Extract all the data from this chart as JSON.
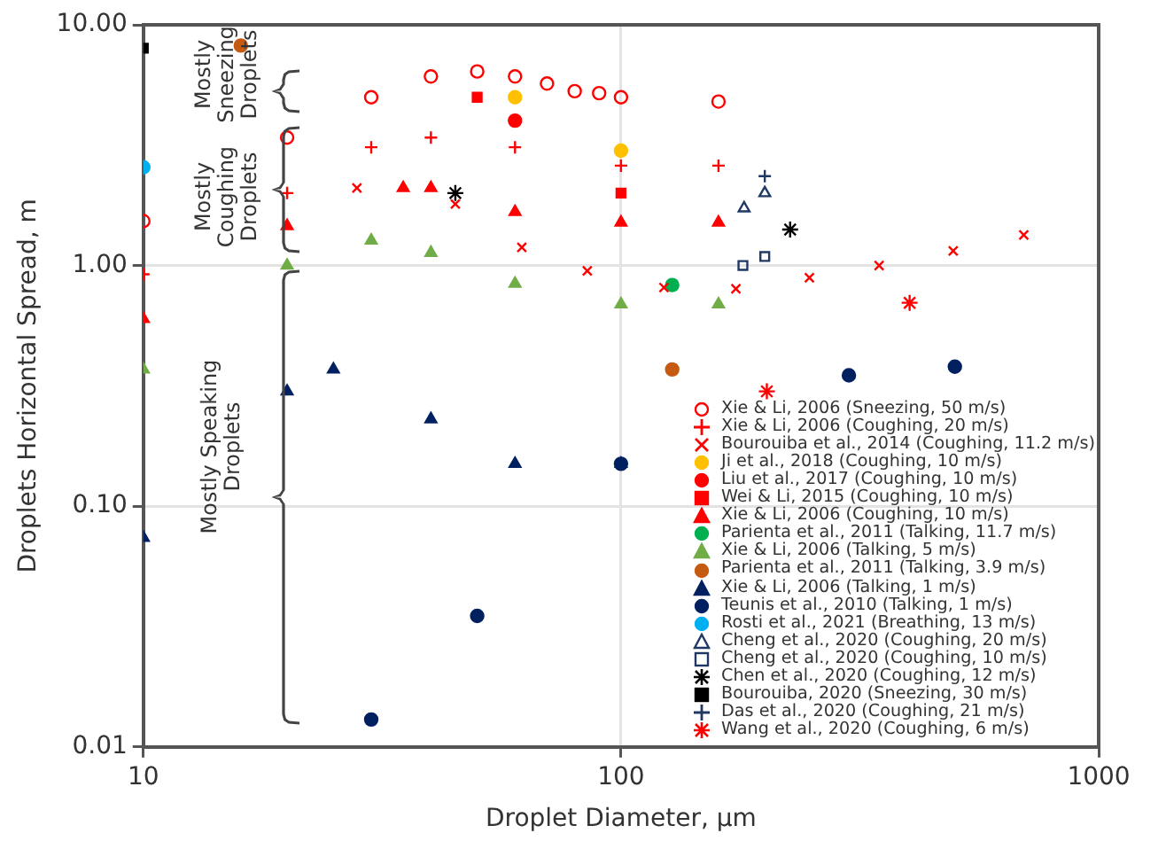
{
  "chart_data": {
    "type": "scatter",
    "xlabel": "Droplet Diameter, μm",
    "ylabel": "Droplets Horizontal Spread, m",
    "log": "xy",
    "grid": true,
    "legend": "bottom right",
    "xlim": [
      10,
      1000
    ],
    "xticks": [
      10,
      100,
      1000
    ],
    "ylim": [
      0.01,
      10
    ],
    "yticks": [
      {
        "value": 0.01,
        "label": "0.01"
      },
      {
        "value": 0.1,
        "label": "0.10"
      },
      {
        "value": 1,
        "label": "1.00"
      },
      {
        "value": 10,
        "label": "10.00"
      }
    ],
    "annotations": [
      "Mostly Sneezing Droplets",
      "Mostly Coughing Droplets",
      "Mostly Speaking Droplets"
    ],
    "series": [
      {
        "name": "Xie & Li, 2006 (Sneezing, 50 m/s)",
        "color": "#ff0000",
        "marker": "circle-open",
        "x": [
          10,
          20,
          30,
          40,
          50,
          60,
          70,
          80,
          90,
          100,
          160
        ],
        "values": [
          1.53,
          3.4,
          5.0,
          6.1,
          6.4,
          6.1,
          5.7,
          5.3,
          5.2,
          5.0,
          4.8
        ]
      },
      {
        "name": "Xie & Li, 2006 (Coughing, 20 m/s)",
        "color": "#ff0000",
        "marker": "plus",
        "x": [
          10,
          20,
          30,
          40,
          60,
          100,
          160
        ],
        "values": [
          0.92,
          2.0,
          3.1,
          3.4,
          3.1,
          2.6,
          2.6
        ]
      },
      {
        "name": "Bourouiba et al., 2014 (Coughing, 11.2 m/s)",
        "color": "#ff0000",
        "marker": "x",
        "x": [
          28,
          45,
          62,
          85,
          123,
          174,
          248,
          347,
          496,
          697
        ],
        "values": [
          2.1,
          1.8,
          1.19,
          0.95,
          0.81,
          0.8,
          0.89,
          1.0,
          1.15,
          1.34
        ]
      },
      {
        "name": "Ji et al., 2018 (Coughing, 10 m/s)",
        "color": "#ffc000",
        "marker": "circle",
        "x": [
          60,
          100
        ],
        "values": [
          5.0,
          3.0
        ]
      },
      {
        "name": "Liu et al., 2017 (Coughing, 10 m/s)",
        "color": "#ff0000",
        "marker": "circle",
        "x": [
          60
        ],
        "values": [
          4.0
        ]
      },
      {
        "name": "Wei & Li, 2015 (Coughing, 10 m/s)",
        "color": "#ff0000",
        "marker": "square",
        "x": [
          50,
          100
        ],
        "values": [
          5.0,
          2.0
        ]
      },
      {
        "name": "Xie & Li, 2006 (Coughing, 10 m/s)",
        "color": "#ff0000",
        "marker": "triangle",
        "x": [
          10,
          20,
          35,
          40,
          60,
          100,
          160
        ],
        "values": [
          0.6,
          1.46,
          2.1,
          2.1,
          1.67,
          1.51,
          1.51
        ]
      },
      {
        "name": "Parienta et al., 2011 (Talking, 11.7 m/s)",
        "color": "#00b050",
        "marker": "circle",
        "x": [
          128
        ],
        "values": [
          0.83
        ]
      },
      {
        "name": "Xie & Li, 2006 (Talking, 5 m/s)",
        "color": "#70ad47",
        "marker": "triangle",
        "x": [
          10,
          20,
          30,
          40,
          60,
          100,
          160
        ],
        "values": [
          0.37,
          1.0,
          1.27,
          1.13,
          0.84,
          0.69,
          0.69
        ]
      },
      {
        "name": "Parienta et al., 2011 (Talking, 3.9 m/s)",
        "color": "#c55a11",
        "marker": "circle",
        "x": [
          16,
          128
        ],
        "values": [
          8.2,
          0.37
        ]
      },
      {
        "name": "Xie & Li, 2006 (Talking, 1 m/s)",
        "color": "#002060",
        "marker": "triangle",
        "x": [
          10,
          20,
          25,
          40,
          60,
          100
        ],
        "values": [
          0.074,
          0.3,
          0.37,
          0.23,
          0.15,
          0.15
        ]
      },
      {
        "name": "Teunis et al., 2010 (Talking, 1 m/s)",
        "color": "#002060",
        "marker": "circle",
        "x": [
          30,
          50,
          100,
          300,
          500
        ],
        "values": [
          0.013,
          0.035,
          0.15,
          0.35,
          0.38
        ]
      },
      {
        "name": "Rosti et al., 2021 (Breathing, 13 m/s)",
        "color": "#00b0f0",
        "marker": "circle",
        "x": [
          10
        ],
        "values": [
          2.56
        ]
      },
      {
        "name": "Cheng et al., 2020 (Coughing, 20 m/s)",
        "color": "#203864",
        "marker": "triangle-open",
        "x": [
          181,
          200
        ],
        "values": [
          1.73,
          2.0
        ]
      },
      {
        "name": "Cheng et al., 2020 (Coughing, 10 m/s)",
        "color": "#203864",
        "marker": "square-open",
        "x": [
          180,
          200
        ],
        "values": [
          1.0,
          1.09
        ]
      },
      {
        "name": "Chen et al., 2020 (Coughing, 12 m/s)",
        "color": "#000000",
        "marker": "cross",
        "x": [
          45,
          226
        ],
        "values": [
          2.0,
          1.41
        ]
      },
      {
        "name": "Bourouiba, 2020 (Sneezing, 30 m/s)",
        "color": "#000000",
        "marker": "square",
        "x": [
          10
        ],
        "values": [
          8.0
        ]
      },
      {
        "name": "Das et al., 2020 (Coughing, 21 m/s)",
        "color": "#203864",
        "marker": "plus",
        "x": [
          200
        ],
        "values": [
          2.35
        ]
      },
      {
        "name": "Wang et al., 2020 (Coughing, 6 m/s)",
        "color": "#ff0000",
        "marker": "cross",
        "x": [
          202,
          402
        ],
        "values": [
          0.3,
          0.7
        ]
      }
    ]
  }
}
